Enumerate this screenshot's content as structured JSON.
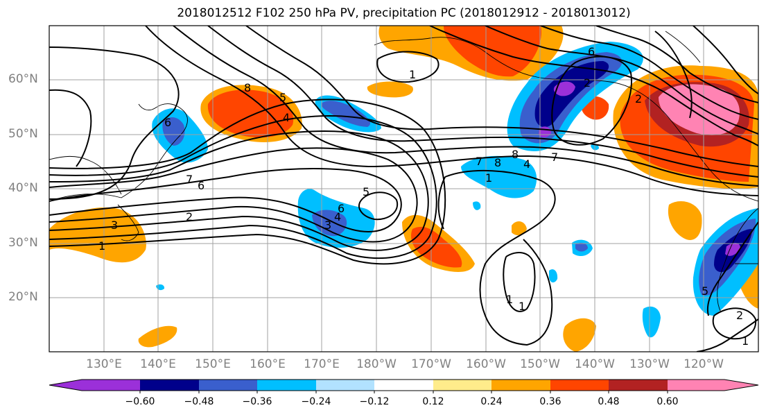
{
  "title": "2018012512 F102 250 hPa PV, precipitation PC (2018012912 - 2018013012)",
  "lat_labels": [
    "60°N",
    "50°N",
    "40°N",
    "30°N",
    "20°N"
  ],
  "lon_labels": [
    "130°E",
    "140°E",
    "150°E",
    "160°E",
    "170°E",
    "180°W",
    "170°W",
    "160°W",
    "150°W",
    "140°W",
    "130°W",
    "120°W"
  ],
  "colorbar": {
    "ticks": [
      "−0.60",
      "−0.48",
      "−0.36",
      "−0.24",
      "−0.12",
      "0.12",
      "0.24",
      "0.36",
      "0.48",
      "0.60"
    ],
    "colors": [
      "#9b30d9",
      "#00008b",
      "#3a5fcd",
      "#00bfff",
      "#b2e2ff",
      "#ffffff",
      "#ffec8b",
      "#ffa500",
      "#ff4500",
      "#b22222",
      "#ff83b3"
    ]
  },
  "contour_labels": [
    "8",
    "1",
    "5",
    "4",
    "6",
    "2",
    "7",
    "3",
    "1",
    "6",
    "3",
    "4",
    "6",
    "5",
    "7",
    "1",
    "8",
    "8",
    "4",
    "7",
    "6",
    "2",
    "1",
    "5",
    "2",
    "1",
    "2",
    "1"
  ]
}
